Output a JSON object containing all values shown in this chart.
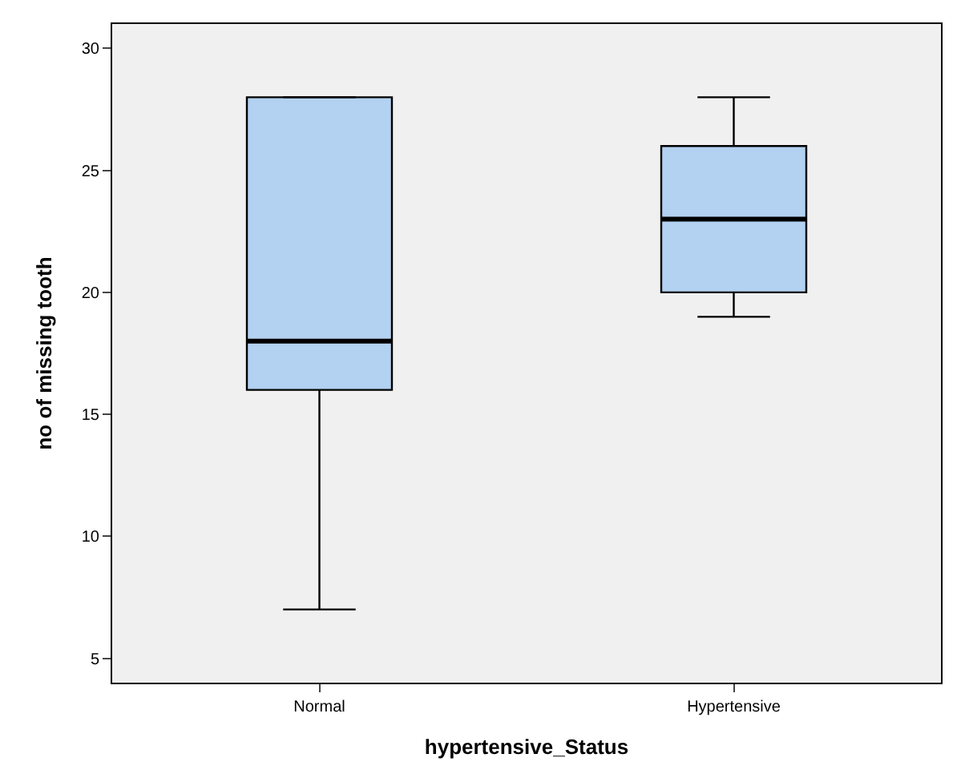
{
  "chart_data": {
    "type": "box",
    "xlabel": "hypertensive_Status",
    "ylabel": "no of missing tooth",
    "categories": [
      "Normal",
      "Hypertensive"
    ],
    "color": "#b3d1f0",
    "boxes": [
      {
        "low": 7,
        "q1": 16,
        "median": 18,
        "q3": 28,
        "high": 28
      },
      {
        "low": 19,
        "q1": 20,
        "median": 23,
        "q3": 26,
        "high": 28
      }
    ],
    "ylim": [
      4,
      31
    ],
    "yticks": [
      5,
      10,
      15,
      20,
      25,
      30
    ],
    "grid": false
  }
}
